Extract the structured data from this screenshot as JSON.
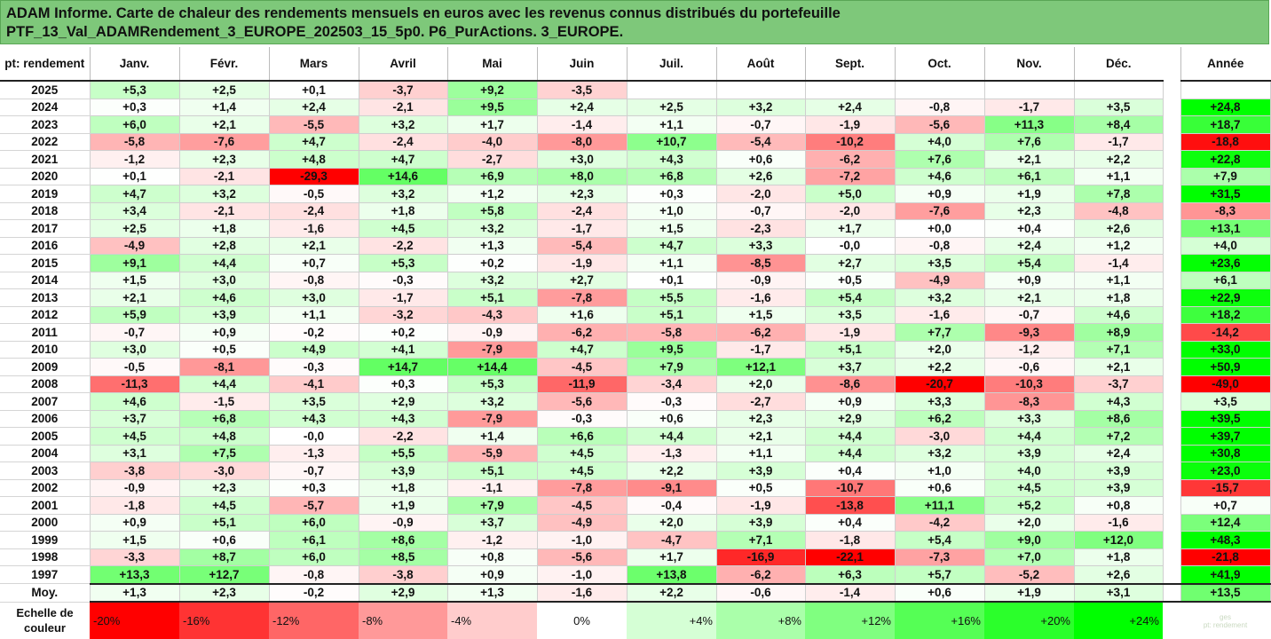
{
  "title": {
    "line1": "ADAM Informe. Carte de chaleur des rendements mensuels en euros avec les revenus connus distribués du portefeuille",
    "line2": "PTF_13_Val_ADAMRendement_3_EUROPE_202503_15_5p0. P6_PurActions. 3_EUROPE."
  },
  "corner_logo": "pt: rendement",
  "colors": {
    "negative": "#ff0000",
    "positive": "#00ff00",
    "neutral": "#ffffff",
    "title_bg": "#7ec87a"
  },
  "chart_data": {
    "type": "heatmap",
    "months": [
      "Janv.",
      "Févr.",
      "Mars",
      "Avril",
      "Mai",
      "Juin",
      "Juil.",
      "Août",
      "Sept.",
      "Oct.",
      "Nov.",
      "Déc."
    ],
    "annual_label": "Année",
    "rows": [
      {
        "year": "2025",
        "values": [
          "+5,3",
          "+2,5",
          "+0,1",
          "-3,7",
          "+9,2",
          "-3,5",
          "",
          "",
          "",
          "",
          "",
          ""
        ],
        "annual": ""
      },
      {
        "year": "2024",
        "values": [
          "+0,3",
          "+1,4",
          "+2,4",
          "-2,1",
          "+9,5",
          "+2,4",
          "+2,5",
          "+3,2",
          "+2,4",
          "-0,8",
          "-1,7",
          "+3,5"
        ],
        "annual": "+24,8"
      },
      {
        "year": "2023",
        "values": [
          "+6,0",
          "+2,1",
          "-5,5",
          "+3,2",
          "+1,7",
          "-1,4",
          "+1,1",
          "-0,7",
          "-1,9",
          "-5,6",
          "+11,3",
          "+8,4"
        ],
        "annual": "+18,7"
      },
      {
        "year": "2022",
        "values": [
          "-5,8",
          "-7,6",
          "+4,7",
          "-2,4",
          "-4,0",
          "-8,0",
          "+10,7",
          "-5,4",
          "-10,2",
          "+4,0",
          "+7,6",
          "-1,7"
        ],
        "annual": "-18,8"
      },
      {
        "year": "2021",
        "values": [
          "-1,2",
          "+2,3",
          "+4,8",
          "+4,7",
          "-2,7",
          "+3,0",
          "+4,3",
          "+0,6",
          "-6,2",
          "+7,6",
          "+2,1",
          "+2,2"
        ],
        "annual": "+22,8"
      },
      {
        "year": "2020",
        "values": [
          "+0,1",
          "-2,1",
          "-29,3",
          "+14,6",
          "+6,9",
          "+8,0",
          "+6,8",
          "+2,6",
          "-7,2",
          "+4,6",
          "+6,1",
          "+1,1"
        ],
        "annual": "+7,9"
      },
      {
        "year": "2019",
        "values": [
          "+4,7",
          "+3,2",
          "-0,5",
          "+3,2",
          "+1,2",
          "+2,3",
          "+0,3",
          "-2,0",
          "+5,0",
          "+0,9",
          "+1,9",
          "+7,8"
        ],
        "annual": "+31,5"
      },
      {
        "year": "2018",
        "values": [
          "+3,4",
          "-2,1",
          "-2,4",
          "+1,8",
          "+5,8",
          "-2,4",
          "+1,0",
          "-0,7",
          "-2,0",
          "-7,6",
          "+2,3",
          "-4,8"
        ],
        "annual": "-8,3"
      },
      {
        "year": "2017",
        "values": [
          "+2,5",
          "+1,8",
          "-1,6",
          "+4,5",
          "+3,2",
          "-1,7",
          "+1,5",
          "-2,3",
          "+1,7",
          "+0,0",
          "+0,4",
          "+2,6"
        ],
        "annual": "+13,1"
      },
      {
        "year": "2016",
        "values": [
          "-4,9",
          "+2,8",
          "+2,1",
          "-2,2",
          "+1,3",
          "-5,4",
          "+4,7",
          "+3,3",
          "-0,0",
          "-0,8",
          "+2,4",
          "+1,2"
        ],
        "annual": "+4,0"
      },
      {
        "year": "2015",
        "values": [
          "+9,1",
          "+4,4",
          "+0,7",
          "+5,3",
          "+0,2",
          "-1,9",
          "+1,1",
          "-8,5",
          "+2,7",
          "+3,5",
          "+5,4",
          "-1,4"
        ],
        "annual": "+23,6"
      },
      {
        "year": "2014",
        "values": [
          "+1,5",
          "+3,0",
          "-0,8",
          "-0,3",
          "+3,2",
          "+2,7",
          "+0,1",
          "-0,9",
          "+0,5",
          "-4,9",
          "+0,9",
          "+1,1"
        ],
        "annual": "+6,1"
      },
      {
        "year": "2013",
        "values": [
          "+2,1",
          "+4,6",
          "+3,0",
          "-1,7",
          "+5,1",
          "-7,8",
          "+5,5",
          "-1,6",
          "+5,4",
          "+3,2",
          "+2,1",
          "+1,8"
        ],
        "annual": "+22,9"
      },
      {
        "year": "2012",
        "values": [
          "+5,9",
          "+3,9",
          "+1,1",
          "-3,2",
          "-4,3",
          "+1,6",
          "+5,1",
          "+1,5",
          "+3,5",
          "-1,6",
          "-0,7",
          "+4,6"
        ],
        "annual": "+18,2"
      },
      {
        "year": "2011",
        "values": [
          "-0,7",
          "+0,9",
          "-0,2",
          "+0,2",
          "-0,9",
          "-6,2",
          "-5,8",
          "-6,2",
          "-1,9",
          "+7,7",
          "-9,3",
          "+8,9"
        ],
        "annual": "-14,2"
      },
      {
        "year": "2010",
        "values": [
          "+3,0",
          "+0,5",
          "+4,9",
          "+4,1",
          "-7,9",
          "+4,7",
          "+9,5",
          "-1,7",
          "+5,1",
          "+2,0",
          "-1,2",
          "+7,1"
        ],
        "annual": "+33,0"
      },
      {
        "year": "2009",
        "values": [
          "-0,5",
          "-8,1",
          "-0,3",
          "+14,7",
          "+14,4",
          "-4,5",
          "+7,9",
          "+12,1",
          "+3,7",
          "+2,2",
          "-0,6",
          "+2,1"
        ],
        "annual": "+50,9"
      },
      {
        "year": "2008",
        "values": [
          "-11,3",
          "+4,4",
          "-4,1",
          "+0,3",
          "+5,3",
          "-11,9",
          "-3,4",
          "+2,0",
          "-8,6",
          "-20,7",
          "-10,3",
          "-3,7"
        ],
        "annual": "-49,0"
      },
      {
        "year": "2007",
        "values": [
          "+4,6",
          "-1,5",
          "+3,5",
          "+2,9",
          "+3,2",
          "-5,6",
          "-0,3",
          "-2,7",
          "+0,9",
          "+3,3",
          "-8,3",
          "+4,3"
        ],
        "annual": "+3,5"
      },
      {
        "year": "2006",
        "values": [
          "+3,7",
          "+6,8",
          "+4,3",
          "+4,3",
          "-7,9",
          "-0,3",
          "+0,6",
          "+2,3",
          "+2,9",
          "+6,2",
          "+3,3",
          "+8,6"
        ],
        "annual": "+39,5"
      },
      {
        "year": "2005",
        "values": [
          "+4,5",
          "+4,8",
          "-0,0",
          "-2,2",
          "+1,4",
          "+6,6",
          "+4,4",
          "+2,1",
          "+4,4",
          "-3,0",
          "+4,4",
          "+7,2"
        ],
        "annual": "+39,7"
      },
      {
        "year": "2004",
        "values": [
          "+3,1",
          "+7,5",
          "-1,3",
          "+5,5",
          "-5,9",
          "+4,5",
          "-1,3",
          "+1,1",
          "+4,4",
          "+3,2",
          "+3,9",
          "+2,4"
        ],
        "annual": "+30,8"
      },
      {
        "year": "2003",
        "values": [
          "-3,8",
          "-3,0",
          "-0,7",
          "+3,9",
          "+5,1",
          "+4,5",
          "+2,2",
          "+3,9",
          "+0,4",
          "+1,0",
          "+4,0",
          "+3,9"
        ],
        "annual": "+23,0"
      },
      {
        "year": "2002",
        "values": [
          "-0,9",
          "+2,3",
          "+0,3",
          "+1,8",
          "-1,1",
          "-7,8",
          "-9,1",
          "+0,5",
          "-10,7",
          "+0,6",
          "+4,5",
          "+3,9"
        ],
        "annual": "-15,7"
      },
      {
        "year": "2001",
        "values": [
          "-1,8",
          "+4,5",
          "-5,7",
          "+1,9",
          "+7,9",
          "-4,5",
          "-0,4",
          "-1,9",
          "-13,8",
          "+11,1",
          "+5,2",
          "+0,8"
        ],
        "annual": "+0,7"
      },
      {
        "year": "2000",
        "values": [
          "+0,9",
          "+5,1",
          "+6,0",
          "-0,9",
          "+3,7",
          "-4,9",
          "+2,0",
          "+3,9",
          "+0,4",
          "-4,2",
          "+2,0",
          "-1,6"
        ],
        "annual": "+12,4"
      },
      {
        "year": "1999",
        "values": [
          "+1,5",
          "+0,6",
          "+6,1",
          "+8,6",
          "-1,2",
          "-1,0",
          "-4,7",
          "+7,1",
          "-1,8",
          "+5,4",
          "+9,0",
          "+12,0"
        ],
        "annual": "+48,3"
      },
      {
        "year": "1998",
        "values": [
          "-3,3",
          "+8,7",
          "+6,0",
          "+8,5",
          "+0,8",
          "-5,6",
          "+1,7",
          "-16,9",
          "-22,1",
          "-7,3",
          "+7,0",
          "+1,8"
        ],
        "annual": "-21,8"
      },
      {
        "year": "1997",
        "values": [
          "+13,3",
          "+12,7",
          "-0,8",
          "-3,8",
          "+0,9",
          "-1,0",
          "+13,8",
          "-6,2",
          "+6,3",
          "+5,7",
          "-5,2",
          "+2,6"
        ],
        "annual": "+41,9"
      }
    ],
    "average": {
      "label": "Moy.",
      "values": [
        "+1,3",
        "+2,3",
        "-0,2",
        "+2,9",
        "+1,3",
        "-1,6",
        "+2,2",
        "-0,6",
        "-1,4",
        "+0,6",
        "+1,9",
        "+3,1"
      ],
      "annual": "+13,5"
    },
    "scale": {
      "label_line1": "Echelle de",
      "label_line2": "couleur",
      "steps": [
        "-20%",
        "-16%",
        "-12%",
        "-8%",
        "-4%",
        "0%",
        "+4%",
        "+8%",
        "+12%",
        "+16%",
        "+20%",
        "+24%"
      ],
      "step_values": [
        -20,
        -16,
        -12,
        -8,
        -4,
        0,
        4,
        8,
        12,
        16,
        20,
        24
      ],
      "footer_logo_line1": "ges",
      "footer_logo_line2": "pt: rendement"
    },
    "color_range": [
      -20,
      24
    ],
    "annual_color_range": [
      -20,
      24
    ]
  }
}
